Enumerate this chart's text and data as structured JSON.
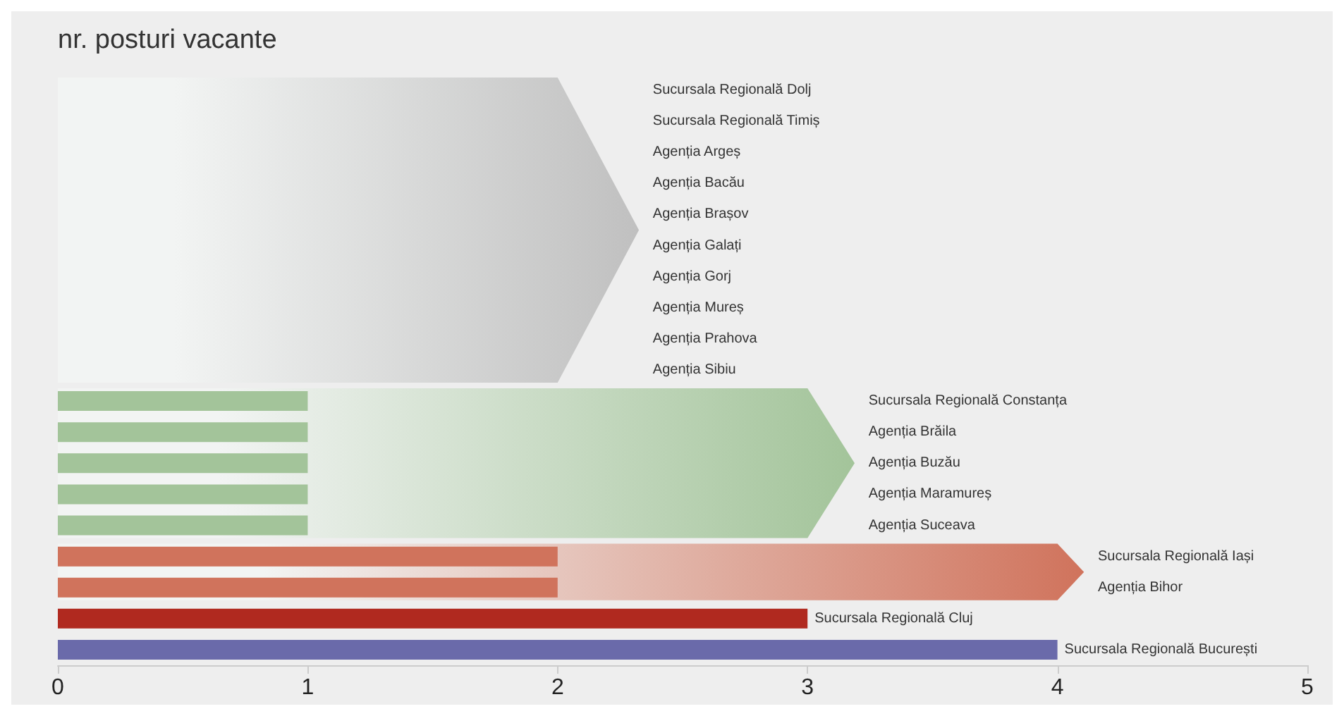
{
  "chart_data": {
    "type": "bar",
    "orientation": "horizontal",
    "title": "nr. posturi vacante",
    "categories": [
      "Sucursala Regională Dolj",
      "Sucursala Regională Timiș",
      "Agenția Argeș",
      "Agenția Bacău",
      "Agenția Brașov",
      "Agenția Galați",
      "Agenția Gorj",
      "Agenția Mureș",
      "Agenția Prahova",
      "Agenția Sibiu",
      "Sucursala Regională Constanța",
      "Agenția Brăila",
      "Agenția Buzău",
      "Agenția Maramureș",
      "Agenția Suceava",
      "Sucursala Regională Iași",
      "Agenția Bihor",
      "Sucursala Regională Cluj",
      "Sucursala Regională București"
    ],
    "values": [
      0,
      0,
      0,
      0,
      0,
      0,
      0,
      0,
      0,
      0,
      1,
      1,
      1,
      1,
      1,
      2,
      2,
      3,
      4
    ],
    "colors": [
      "#c0c0c0",
      "#c0c0c0",
      "#c0c0c0",
      "#c0c0c0",
      "#c0c0c0",
      "#c0c0c0",
      "#c0c0c0",
      "#c0c0c0",
      "#c0c0c0",
      "#c0c0c0",
      "#a3c49a",
      "#a3c49a",
      "#a3c49a",
      "#a3c49a",
      "#a3c49a",
      "#d0735c",
      "#d0735c",
      "#b0291f",
      "#6a6aaa"
    ],
    "xlim": [
      0,
      5
    ],
    "xticks": [
      0,
      1,
      2,
      3,
      4,
      5
    ],
    "grid": false,
    "tick_labels": "x"
  }
}
